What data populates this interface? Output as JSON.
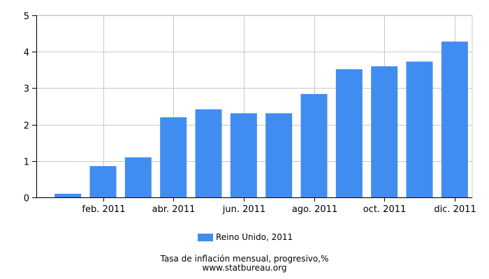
{
  "chart_data": {
    "type": "bar",
    "categories": [
      "ene. 2011",
      "feb. 2011",
      "mar. 2011",
      "abr. 2011",
      "may. 2011",
      "jun. 2011",
      "jul. 2011",
      "ago. 2011",
      "sep. 2011",
      "oct. 2011",
      "nov. 2011",
      "dic. 2011"
    ],
    "x_tick_labels": [
      "",
      "feb. 2011",
      "",
      "abr. 2011",
      "",
      "jun. 2011",
      "",
      "ago. 2011",
      "",
      "oct. 2011",
      "",
      "dic. 2011"
    ],
    "series": [
      {
        "name": "Reino Unido, 2011",
        "values": [
          0.1,
          0.86,
          1.1,
          2.2,
          2.42,
          2.31,
          2.31,
          2.84,
          3.52,
          3.6,
          3.73,
          4.28
        ],
        "color": "#418cf0"
      }
    ],
    "ylim": [
      0,
      5
    ],
    "yticks": [
      0,
      1,
      2,
      3,
      4,
      5
    ],
    "grid": true,
    "legend_position": "bottom",
    "title": "Tasa de inflación mensual, progresivo,%",
    "source": "www.statbureau.org"
  }
}
